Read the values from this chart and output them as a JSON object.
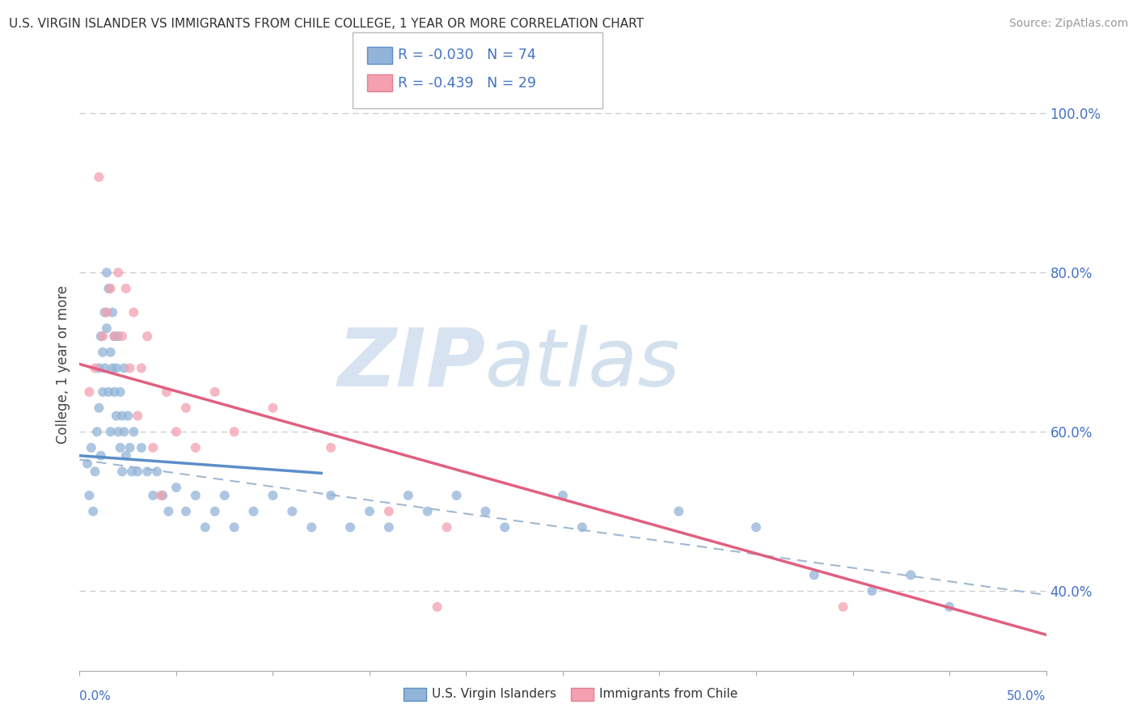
{
  "title": "U.S. VIRGIN ISLANDER VS IMMIGRANTS FROM CHILE COLLEGE, 1 YEAR OR MORE CORRELATION CHART",
  "source": "Source: ZipAtlas.com",
  "ylabel": "College, 1 year or more",
  "legend_label1": "U.S. Virgin Islanders",
  "legend_label2": "Immigrants from Chile",
  "legend_r1": "R = -0.030",
  "legend_n1": "N = 74",
  "legend_r2": "R = -0.439",
  "legend_n2": "N = 29",
  "watermark_zip": "ZIP",
  "watermark_atlas": "atlas",
  "color_blue": "#92b4d8",
  "color_pink": "#f4a0b0",
  "color_blue_line": "#5b8ec7",
  "color_pink_line": "#e06080",
  "color_text_blue": "#4472c4",
  "xmin": 0.0,
  "xmax": 0.5,
  "ymin": 0.3,
  "ymax": 1.07,
  "blue_scatter_x": [
    0.004,
    0.005,
    0.006,
    0.007,
    0.008,
    0.009,
    0.01,
    0.01,
    0.011,
    0.011,
    0.012,
    0.012,
    0.013,
    0.013,
    0.014,
    0.014,
    0.015,
    0.015,
    0.016,
    0.016,
    0.017,
    0.017,
    0.018,
    0.018,
    0.019,
    0.019,
    0.02,
    0.02,
    0.021,
    0.021,
    0.022,
    0.022,
    0.023,
    0.023,
    0.024,
    0.025,
    0.026,
    0.027,
    0.028,
    0.03,
    0.032,
    0.035,
    0.038,
    0.04,
    0.043,
    0.046,
    0.05,
    0.055,
    0.06,
    0.065,
    0.07,
    0.075,
    0.08,
    0.09,
    0.1,
    0.11,
    0.12,
    0.13,
    0.14,
    0.15,
    0.16,
    0.17,
    0.18,
    0.195,
    0.21,
    0.22,
    0.25,
    0.26,
    0.31,
    0.35,
    0.38,
    0.41,
    0.43,
    0.45
  ],
  "blue_scatter_y": [
    0.56,
    0.52,
    0.58,
    0.5,
    0.55,
    0.6,
    0.63,
    0.68,
    0.57,
    0.72,
    0.65,
    0.7,
    0.75,
    0.68,
    0.8,
    0.73,
    0.78,
    0.65,
    0.7,
    0.6,
    0.75,
    0.68,
    0.72,
    0.65,
    0.62,
    0.68,
    0.6,
    0.72,
    0.65,
    0.58,
    0.62,
    0.55,
    0.68,
    0.6,
    0.57,
    0.62,
    0.58,
    0.55,
    0.6,
    0.55,
    0.58,
    0.55,
    0.52,
    0.55,
    0.52,
    0.5,
    0.53,
    0.5,
    0.52,
    0.48,
    0.5,
    0.52,
    0.48,
    0.5,
    0.52,
    0.5,
    0.48,
    0.52,
    0.48,
    0.5,
    0.48,
    0.52,
    0.5,
    0.52,
    0.5,
    0.48,
    0.52,
    0.48,
    0.5,
    0.48,
    0.42,
    0.4,
    0.42,
    0.38
  ],
  "pink_scatter_x": [
    0.005,
    0.008,
    0.01,
    0.012,
    0.014,
    0.016,
    0.018,
    0.02,
    0.022,
    0.024,
    0.026,
    0.028,
    0.03,
    0.032,
    0.035,
    0.038,
    0.042,
    0.045,
    0.05,
    0.055,
    0.06,
    0.07,
    0.08,
    0.1,
    0.13,
    0.16,
    0.185,
    0.19,
    0.395
  ],
  "pink_scatter_y": [
    0.65,
    0.68,
    0.92,
    0.72,
    0.75,
    0.78,
    0.72,
    0.8,
    0.72,
    0.78,
    0.68,
    0.75,
    0.62,
    0.68,
    0.72,
    0.58,
    0.52,
    0.65,
    0.6,
    0.63,
    0.58,
    0.65,
    0.6,
    0.63,
    0.58,
    0.5,
    0.38,
    0.48,
    0.38
  ],
  "blue_trend_x0": 0.0,
  "blue_trend_x1": 0.125,
  "blue_trend_y0": 0.57,
  "blue_trend_y1": 0.548,
  "pink_trend_x0": 0.0,
  "pink_trend_x1": 0.5,
  "pink_trend_y0": 0.685,
  "pink_trend_y1": 0.345,
  "dash_trend_x0": 0.0,
  "dash_trend_x1": 0.5,
  "dash_trend_y0": 0.565,
  "dash_trend_y1": 0.395,
  "ytick_right_labels": [
    "100.0%",
    "80.0%",
    "60.0%",
    "40.0%"
  ],
  "ytick_right_values": [
    1.0,
    0.8,
    0.6,
    0.4
  ],
  "grid_color": "#cccccc",
  "grid_style": "--",
  "background_color": "#ffffff"
}
